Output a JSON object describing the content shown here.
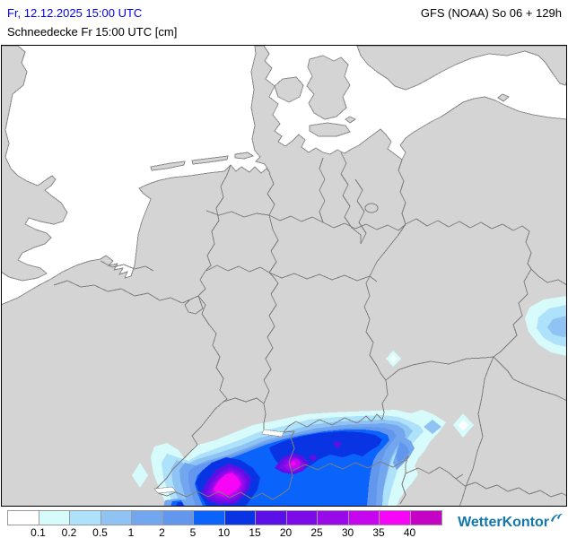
{
  "header": {
    "datetime": "Fr, 12.12.2025 15:00 UTC",
    "datetime_color": "#0000EE",
    "model": "GFS (NOAA) So 06 + 129h",
    "parameter": "Schneedecke Fr 15:00 UTC [cm]"
  },
  "legend": {
    "unit": "cm",
    "labels": [
      "0.1",
      "0.2",
      "0.5",
      "1",
      "2",
      "5",
      "10",
      "15",
      "20",
      "25",
      "30",
      "35",
      "40"
    ],
    "colors": [
      "#FFFFFF",
      "#D7FBFB",
      "#AEE2FA",
      "#8FC3F4",
      "#72A7F0",
      "#6397EE",
      "#0A64FB",
      "#0834E4",
      "#5A10E6",
      "#7B0CE8",
      "#990AE9",
      "#C606EF",
      "#F705F7",
      "#C403C4"
    ]
  },
  "logo": {
    "text": "WetterKontor",
    "color": "#1278AC"
  },
  "map": {
    "sea_color": "#FFFFFF",
    "land_color": "#D4D4D4",
    "coast_color": "#8A8A8A",
    "border_color": "#7E7E7E",
    "frame_color": "#000000",
    "lake_color": "#FFFFFF"
  }
}
